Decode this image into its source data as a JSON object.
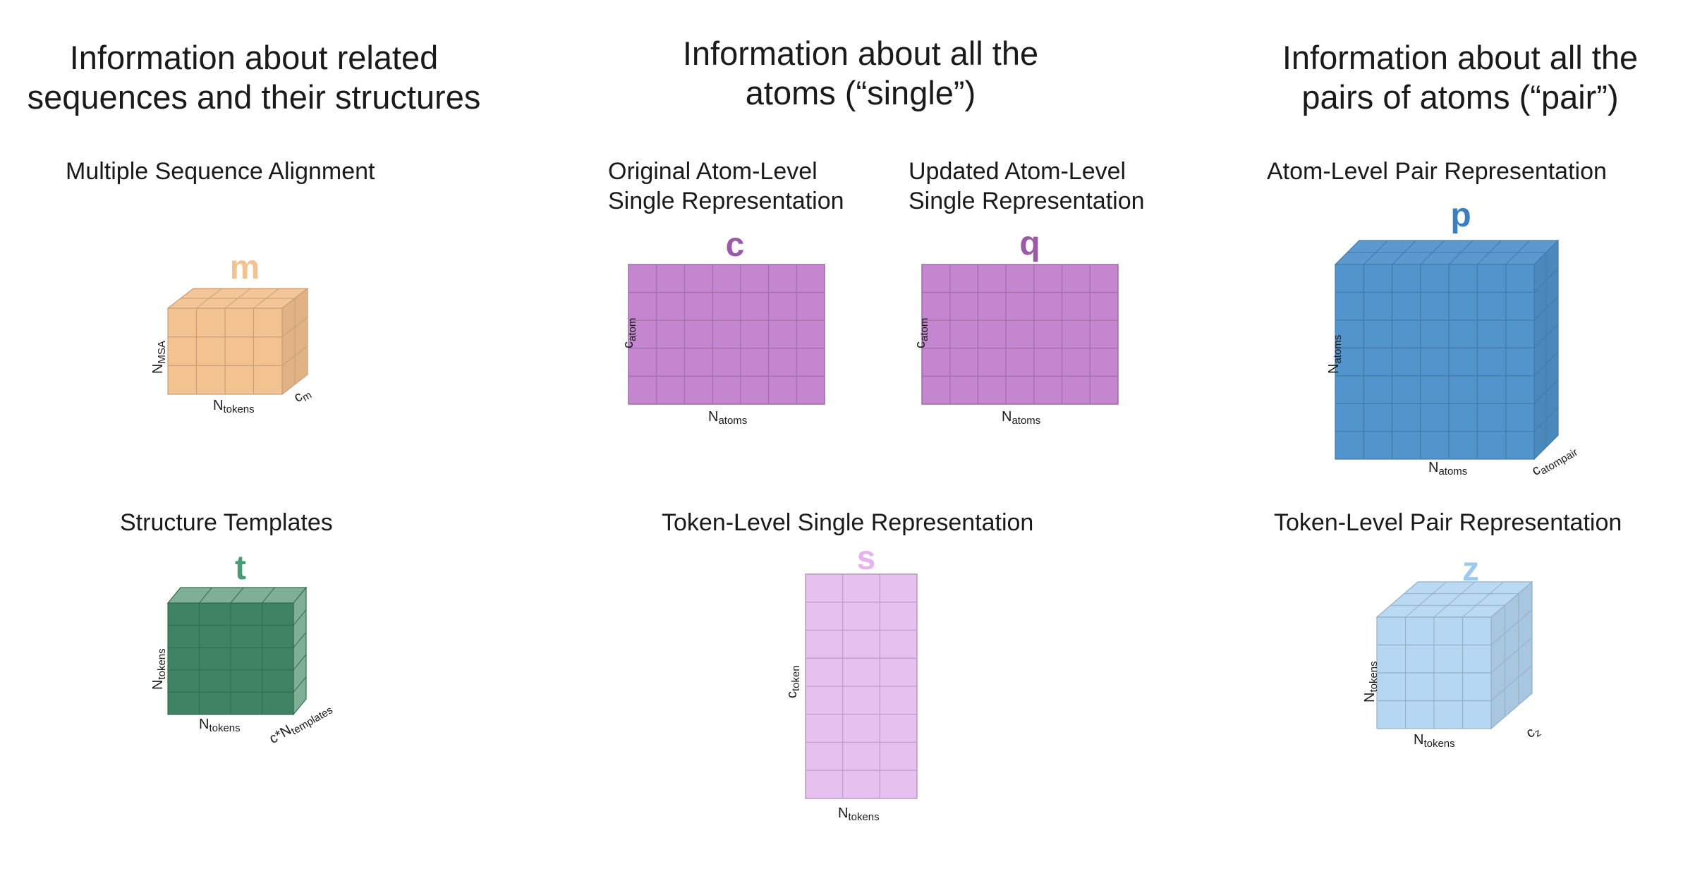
{
  "headings": {
    "left": "Information about related\nsequences and their structures",
    "middle": "Information about all the\natoms (“single”)",
    "right": "Information about all the\npairs of atoms (“pair”)"
  },
  "subtitles": {
    "msa": "Multiple Sequence Alignment",
    "original_atom": "Original Atom-Level\nSingle Representation",
    "updated_atom": "Updated Atom-Level\nSingle Representation",
    "atom_pair": "Atom-Level Pair Representation",
    "templates": "Structure Templates",
    "token_single": "Token-Level Single Representation",
    "token_pair": "Token-Level Pair Representation"
  },
  "symbols": {
    "m": {
      "text": "m",
      "color": "#f3c291"
    },
    "c": {
      "text": "c",
      "color": "#9b59a8"
    },
    "q": {
      "text": "q",
      "color": "#9b59a8"
    },
    "p": {
      "text": "p",
      "color": "#3b7fc0"
    },
    "t": {
      "text": "t",
      "color": "#4a9c78"
    },
    "s": {
      "text": "s",
      "color": "#e6b3f0"
    },
    "z": {
      "text": "z",
      "color": "#9cc9ee"
    }
  },
  "axis_labels": {
    "m_vertical": {
      "base": "N",
      "sub": "MSA"
    },
    "m_horizontal": {
      "base": "N",
      "sub": "tokens"
    },
    "m_depth": {
      "base": "c",
      "sub": "m"
    },
    "c_vertical": {
      "base": "c",
      "sub": "atom"
    },
    "c_horizontal": {
      "base": "N",
      "sub": "atoms"
    },
    "q_vertical": {
      "base": "c",
      "sub": "atom"
    },
    "q_horizontal": {
      "base": "N",
      "sub": "atoms"
    },
    "p_vertical": {
      "base": "N",
      "sub": "atoms"
    },
    "p_horizontal": {
      "base": "N",
      "sub": "atoms"
    },
    "p_depth": {
      "base": "c",
      "sub": "atompair"
    },
    "t_vertical": {
      "base": "N",
      "sub": "tokens"
    },
    "t_horizontal": {
      "base": "N",
      "sub": "tokens"
    },
    "t_depth": {
      "base": "c*N",
      "sub": "templates"
    },
    "s_vertical": {
      "base": "c",
      "sub": "token"
    },
    "s_horizontal": {
      "base": "N",
      "sub": "tokens"
    },
    "z_vertical": {
      "base": "N",
      "sub": "tokens"
    },
    "z_horizontal": {
      "base": "N",
      "sub": "tokens"
    },
    "z_depth": {
      "base": "c",
      "sub": "z"
    }
  },
  "colors": {
    "msa_fill": "#f3c291",
    "single_atom_fill": "#c386cf",
    "atom_pair_fill": "#5294cc",
    "template_fill": "#3f8462",
    "template_back_fill": "#7fb097",
    "token_single_fill": "#e6c1f0",
    "token_pair_fill": "#b6d7f2"
  }
}
